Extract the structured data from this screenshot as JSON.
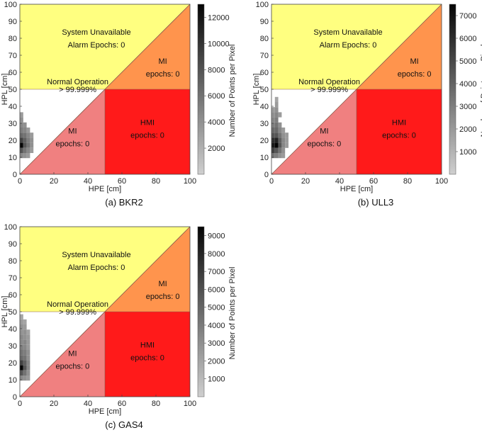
{
  "chart_data": [
    {
      "type": "heatmap",
      "caption": "(a) BKR2",
      "xlabel": "HPE [cm]",
      "ylabel": "HPL [cm]",
      "xlim": [
        0,
        100
      ],
      "ylim": [
        0,
        100
      ],
      "xticks": [
        0,
        20,
        40,
        60,
        80,
        100
      ],
      "yticks": [
        0,
        10,
        20,
        30,
        40,
        50,
        60,
        70,
        80,
        90,
        100
      ],
      "colorbar": {
        "label": "Number of Points per Pixel",
        "max": 13000,
        "ticks": [
          2000,
          4000,
          6000,
          8000,
          10000,
          12000
        ]
      },
      "regions": {
        "unavailable": [
          "System Unavailable",
          "Alarm Epochs: 0"
        ],
        "mi_upper": [
          "MI",
          "epochs: 0"
        ],
        "normal": [
          "Normal Operation",
          "> 99.999%"
        ],
        "mi_lower": [
          "MI",
          "epochs: 0"
        ],
        "hmi": [
          "HMI",
          "epochs: 0"
        ]
      },
      "density": [
        [
          1,
          35,
          0.25
        ],
        [
          1,
          32,
          0.3
        ],
        [
          1,
          29,
          0.35
        ],
        [
          3,
          29,
          0.3
        ],
        [
          1,
          26,
          0.4
        ],
        [
          3,
          26,
          0.35
        ],
        [
          5,
          26,
          0.25
        ],
        [
          1,
          23,
          0.5
        ],
        [
          3,
          23,
          0.45
        ],
        [
          5,
          23,
          0.35
        ],
        [
          7,
          23,
          0.25
        ],
        [
          1,
          20,
          0.7
        ],
        [
          3,
          20,
          0.55
        ],
        [
          5,
          20,
          0.4
        ],
        [
          7,
          20,
          0.3
        ],
        [
          1,
          17,
          1.0
        ],
        [
          3,
          17,
          0.6
        ],
        [
          5,
          17,
          0.45
        ],
        [
          7,
          17,
          0.3
        ],
        [
          1,
          14,
          0.6
        ],
        [
          3,
          14,
          0.45
        ],
        [
          5,
          14,
          0.35
        ],
        [
          7,
          14,
          0.25
        ],
        [
          1,
          11,
          0.35
        ],
        [
          3,
          11,
          0.3
        ],
        [
          5,
          11,
          0.25
        ]
      ]
    },
    {
      "type": "heatmap",
      "caption": "(b) ULL3",
      "xlabel": "HPE [cm]",
      "ylabel": "HPL [cm]",
      "xlim": [
        0,
        100
      ],
      "ylim": [
        0,
        100
      ],
      "xticks": [
        0,
        20,
        40,
        60,
        80,
        100
      ],
      "yticks": [
        0,
        10,
        20,
        30,
        40,
        50,
        60,
        70,
        80,
        90,
        100
      ],
      "colorbar": {
        "label": "Number of Points per Pixel",
        "max": 7500,
        "ticks": [
          1000,
          2000,
          3000,
          4000,
          5000,
          6000,
          7000
        ]
      },
      "regions": {
        "unavailable": [
          "System Unavailable",
          "Alarm Epochs: 0"
        ],
        "mi_upper": [
          "MI",
          "epochs: 0"
        ],
        "normal": [
          "Normal Operation",
          "> 99.999%"
        ],
        "mi_lower": [
          "MI",
          "epochs: 0"
        ],
        "hmi": [
          "HMI",
          "epochs: 0"
        ]
      },
      "density": [
        [
          3,
          44,
          0.2
        ],
        [
          3,
          41,
          0.25
        ],
        [
          1,
          38,
          0.25
        ],
        [
          3,
          38,
          0.3
        ],
        [
          1,
          35,
          0.3
        ],
        [
          3,
          35,
          0.35
        ],
        [
          5,
          35,
          0.25
        ],
        [
          1,
          32,
          0.35
        ],
        [
          3,
          32,
          0.4
        ],
        [
          1,
          29,
          0.4
        ],
        [
          3,
          29,
          0.45
        ],
        [
          5,
          29,
          0.3
        ],
        [
          1,
          26,
          0.5
        ],
        [
          3,
          26,
          0.5
        ],
        [
          5,
          26,
          0.35
        ],
        [
          7,
          26,
          0.25
        ],
        [
          1,
          23,
          0.6
        ],
        [
          3,
          23,
          0.6
        ],
        [
          5,
          23,
          0.45
        ],
        [
          7,
          23,
          0.3
        ],
        [
          9,
          23,
          0.25
        ],
        [
          1,
          20,
          0.8
        ],
        [
          3,
          20,
          0.85
        ],
        [
          5,
          20,
          0.55
        ],
        [
          7,
          20,
          0.35
        ],
        [
          9,
          20,
          0.25
        ],
        [
          1,
          17,
          0.9
        ],
        [
          3,
          17,
          1.0
        ],
        [
          5,
          17,
          0.6
        ],
        [
          7,
          17,
          0.35
        ],
        [
          9,
          17,
          0.25
        ],
        [
          1,
          14,
          0.7
        ],
        [
          3,
          14,
          0.6
        ],
        [
          5,
          14,
          0.45
        ],
        [
          7,
          14,
          0.3
        ],
        [
          1,
          11,
          0.45
        ],
        [
          3,
          11,
          0.4
        ],
        [
          5,
          11,
          0.3
        ],
        [
          7,
          11,
          0.25
        ]
      ]
    },
    {
      "type": "heatmap",
      "caption": "(c) GAS4",
      "xlabel": "HPE [cm]",
      "ylabel": "HPL [cm]",
      "xlim": [
        0,
        100
      ],
      "ylim": [
        0,
        100
      ],
      "xticks": [
        0,
        20,
        40,
        60,
        80,
        100
      ],
      "yticks": [
        0,
        10,
        20,
        30,
        40,
        50,
        60,
        70,
        80,
        90,
        100
      ],
      "colorbar": {
        "label": "Number of Points per Pixel",
        "max": 9500,
        "ticks": [
          1000,
          2000,
          3000,
          4000,
          5000,
          6000,
          7000,
          8000,
          9000
        ]
      },
      "regions": {
        "unavailable": [
          "System Unavailable",
          "Alarm Epochs: 0"
        ],
        "mi_upper": [
          "MI",
          "epochs: 0"
        ],
        "normal": [
          "Normal Operation",
          "> 99.999%"
        ],
        "mi_lower": [
          "MI",
          "epochs: 0"
        ],
        "hmi": [
          "HMI",
          "epochs: 0"
        ]
      },
      "density": [
        [
          1,
          47,
          0.2
        ],
        [
          1,
          44,
          0.25
        ],
        [
          3,
          44,
          0.2
        ],
        [
          1,
          41,
          0.3
        ],
        [
          3,
          41,
          0.25
        ],
        [
          1,
          38,
          0.3
        ],
        [
          3,
          38,
          0.3
        ],
        [
          5,
          38,
          0.2
        ],
        [
          1,
          35,
          0.35
        ],
        [
          3,
          35,
          0.3
        ],
        [
          5,
          35,
          0.25
        ],
        [
          1,
          32,
          0.35
        ],
        [
          3,
          32,
          0.35
        ],
        [
          5,
          32,
          0.25
        ],
        [
          1,
          29,
          0.4
        ],
        [
          3,
          29,
          0.35
        ],
        [
          5,
          29,
          0.25
        ],
        [
          1,
          26,
          0.45
        ],
        [
          3,
          26,
          0.4
        ],
        [
          5,
          26,
          0.3
        ],
        [
          1,
          23,
          0.5
        ],
        [
          3,
          23,
          0.45
        ],
        [
          5,
          23,
          0.3
        ],
        [
          1,
          20,
          0.7
        ],
        [
          3,
          20,
          0.55
        ],
        [
          5,
          20,
          0.35
        ],
        [
          1,
          17,
          1.0
        ],
        [
          3,
          17,
          0.6
        ],
        [
          5,
          17,
          0.35
        ],
        [
          1,
          14,
          0.6
        ],
        [
          3,
          14,
          0.45
        ],
        [
          5,
          14,
          0.3
        ],
        [
          1,
          11,
          0.35
        ],
        [
          3,
          11,
          0.3
        ],
        [
          5,
          11,
          0.25
        ]
      ]
    }
  ],
  "colors": {
    "unavailable": "#ffff80",
    "mi_upper": "#ff944d",
    "normal": "#ffffff",
    "mi_lower": "#f08080",
    "hmi": "#ff1a1a"
  }
}
